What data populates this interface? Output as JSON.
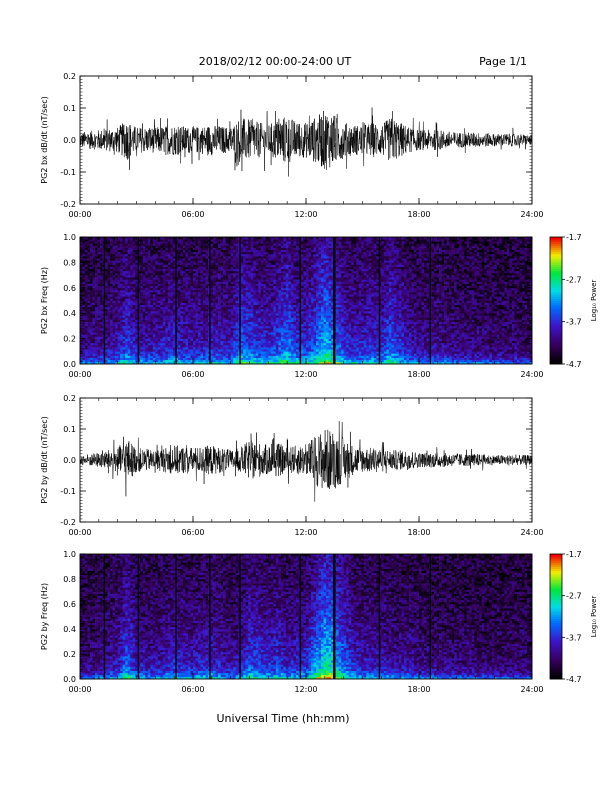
{
  "header": {
    "title": "2018/02/12  00:00-24:00 UT",
    "page_label": "Page 1/1"
  },
  "footer": {
    "xlabel": "Universal Time (hh:mm)"
  },
  "chart_data": [
    {
      "type": "line",
      "ylabel": "PG2 bx dB/dt (nT/sec)",
      "ylim": [
        -0.2,
        0.2
      ],
      "yticks": [
        "-0.2",
        "-0.1",
        "0.0",
        "0.1",
        "0.2"
      ],
      "xticks": [
        "00:00",
        "06:00",
        "12:00",
        "18:00",
        "24:00"
      ],
      "xlim_hours": [
        0,
        24
      ],
      "envelope": {
        "hours": [
          0,
          1,
          2,
          2.5,
          3,
          4,
          5,
          6,
          7,
          8,
          8.5,
          9,
          9.5,
          10,
          10.5,
          11,
          11.5,
          12,
          12.5,
          13,
          13.5,
          14,
          14.5,
          15,
          15.5,
          16,
          16.5,
          17,
          17.5,
          18,
          19,
          20,
          21,
          22,
          23,
          24
        ],
        "amplitude": [
          0.03,
          0.04,
          0.05,
          0.08,
          0.05,
          0.05,
          0.06,
          0.05,
          0.06,
          0.05,
          0.09,
          0.08,
          0.07,
          0.06,
          0.08,
          0.1,
          0.07,
          0.07,
          0.09,
          0.12,
          0.1,
          0.07,
          0.06,
          0.06,
          0.07,
          0.06,
          0.09,
          0.07,
          0.05,
          0.04,
          0.04,
          0.03,
          0.03,
          0.025,
          0.025,
          0.02
        ]
      }
    },
    {
      "type": "heatmap",
      "ylabel": "PG2 bx Freq (Hz)",
      "ylim": [
        0,
        1
      ],
      "yticks": [
        "0.0",
        "0.2",
        "0.4",
        "0.6",
        "0.8",
        "1.0"
      ],
      "xticks": [
        "00:00",
        "06:00",
        "12:00",
        "18:00",
        "24:00"
      ],
      "xlim_hours": [
        0,
        24
      ],
      "colorbar": {
        "label": "Log₁₀ Power",
        "ticks": [
          "-1.7",
          "-2.7",
          "-3.7",
          "-4.7"
        ],
        "range": [
          -4.7,
          -1.7
        ]
      },
      "gap_lines_hours": [
        1.3,
        3.1,
        5.1,
        6.9,
        8.5,
        11.7,
        13.5,
        15.9,
        18.6
      ]
    },
    {
      "type": "line",
      "ylabel": "PG2 by dB/dt (nT/sec)",
      "ylim": [
        -0.2,
        0.2
      ],
      "yticks": [
        "-0.2",
        "-0.1",
        "0.0",
        "0.1",
        "0.2"
      ],
      "xticks": [
        "00:00",
        "06:00",
        "12:00",
        "18:00",
        "24:00"
      ],
      "xlim_hours": [
        0,
        24
      ],
      "envelope": {
        "hours": [
          0,
          1,
          2,
          2.5,
          3,
          4,
          5,
          6,
          7,
          8,
          8.5,
          9,
          9.5,
          10,
          10.5,
          11,
          11.5,
          12,
          12.5,
          13,
          13.5,
          14,
          14.5,
          15,
          15.5,
          16,
          16.5,
          17,
          17.5,
          18,
          19,
          20,
          21,
          22,
          23,
          24
        ],
        "amplitude": [
          0.02,
          0.03,
          0.05,
          0.09,
          0.05,
          0.04,
          0.06,
          0.05,
          0.06,
          0.04,
          0.05,
          0.08,
          0.07,
          0.06,
          0.07,
          0.05,
          0.06,
          0.06,
          0.1,
          0.13,
          0.12,
          0.09,
          0.06,
          0.05,
          0.05,
          0.05,
          0.04,
          0.04,
          0.04,
          0.03,
          0.03,
          0.025,
          0.025,
          0.02,
          0.02,
          0.02
        ]
      }
    },
    {
      "type": "heatmap",
      "ylabel": "PG2 by Freq (Hz)",
      "ylim": [
        0,
        1
      ],
      "yticks": [
        "0.0",
        "0.2",
        "0.4",
        "0.6",
        "0.8",
        "1.0"
      ],
      "xticks": [
        "00:00",
        "06:00",
        "12:00",
        "18:00",
        "24:00"
      ],
      "xlim_hours": [
        0,
        24
      ],
      "colorbar": {
        "label": "Log₁₀ Power",
        "ticks": [
          "-1.7",
          "-2.7",
          "-3.7",
          "-4.7"
        ],
        "range": [
          -4.7,
          -1.7
        ]
      },
      "gap_lines_hours": [
        1.3,
        3.1,
        5.1,
        6.9,
        8.5,
        11.7,
        13.5,
        15.9,
        18.6
      ]
    }
  ]
}
